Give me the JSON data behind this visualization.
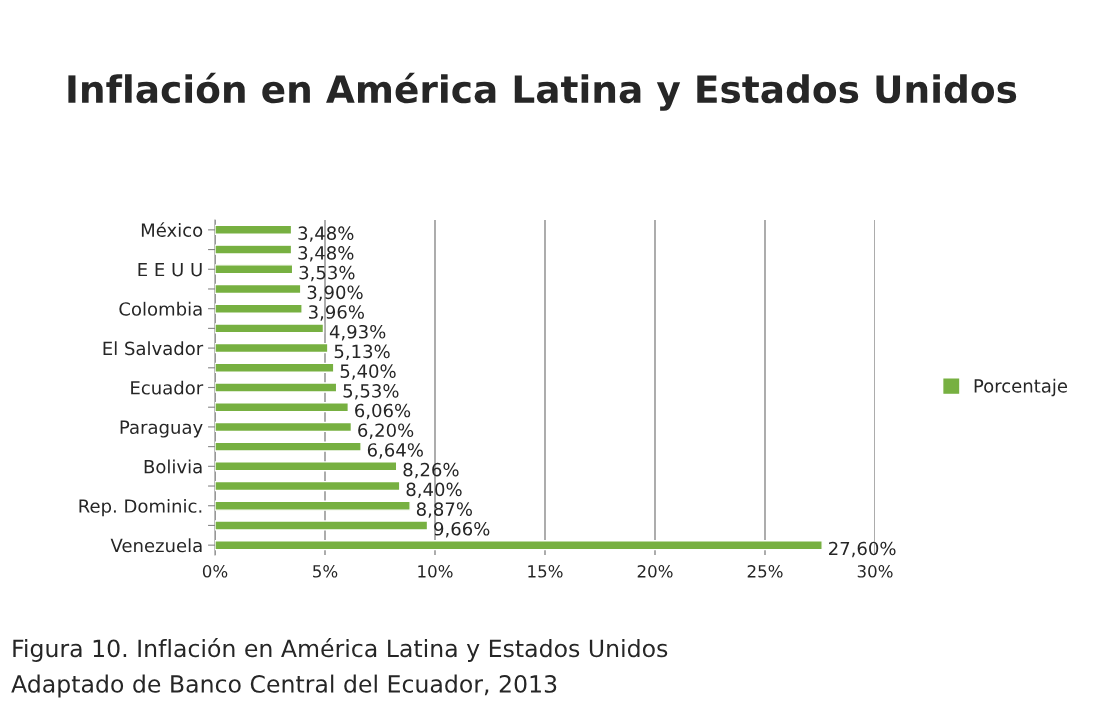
{
  "chart_data": {
    "type": "bar",
    "orientation": "horizontal",
    "title": "Inflación en América Latina y Estados Unidos",
    "categories": [
      "México",
      null,
      "E E U U",
      null,
      "Colombia",
      null,
      "El Salvador",
      null,
      "Ecuador",
      null,
      "Paraguay",
      null,
      "Bolivia",
      null,
      "Rep. Dominic.",
      null,
      "Venezuela"
    ],
    "series": [
      {
        "name": "Porcentaje",
        "color": "#77b041",
        "values": [
          3.48,
          3.48,
          3.53,
          3.9,
          3.96,
          4.93,
          5.13,
          5.4,
          5.53,
          6.06,
          6.2,
          6.64,
          8.26,
          8.4,
          8.87,
          9.66,
          27.6
        ],
        "value_labels": [
          "3,48%",
          "3,48%",
          "3,53%",
          "3,90%",
          "3,96%",
          "4,93%",
          "5,13%",
          "5,40%",
          "5,53%",
          "6,06%",
          "6,20%",
          "6,64%",
          "8,26%",
          "8,40%",
          "8,87%",
          "9,66%",
          "27,60%"
        ]
      }
    ],
    "xlim": [
      0,
      30
    ],
    "xticks": [
      {
        "value": 0,
        "label": "0%"
      },
      {
        "value": 5,
        "label": "5%"
      },
      {
        "value": 10,
        "label": "10%"
      },
      {
        "value": 15,
        "label": "15%"
      },
      {
        "value": 20,
        "label": "20%"
      },
      {
        "value": 25,
        "label": "25%"
      },
      {
        "value": 30,
        "label": "30%"
      }
    ],
    "grid": "x",
    "legend": "right",
    "annotations": [
      "Figura 10. Inflación en América Latina y Estados Unidos",
      "Adaptado de Banco Central del Ecuador, 2013"
    ]
  }
}
